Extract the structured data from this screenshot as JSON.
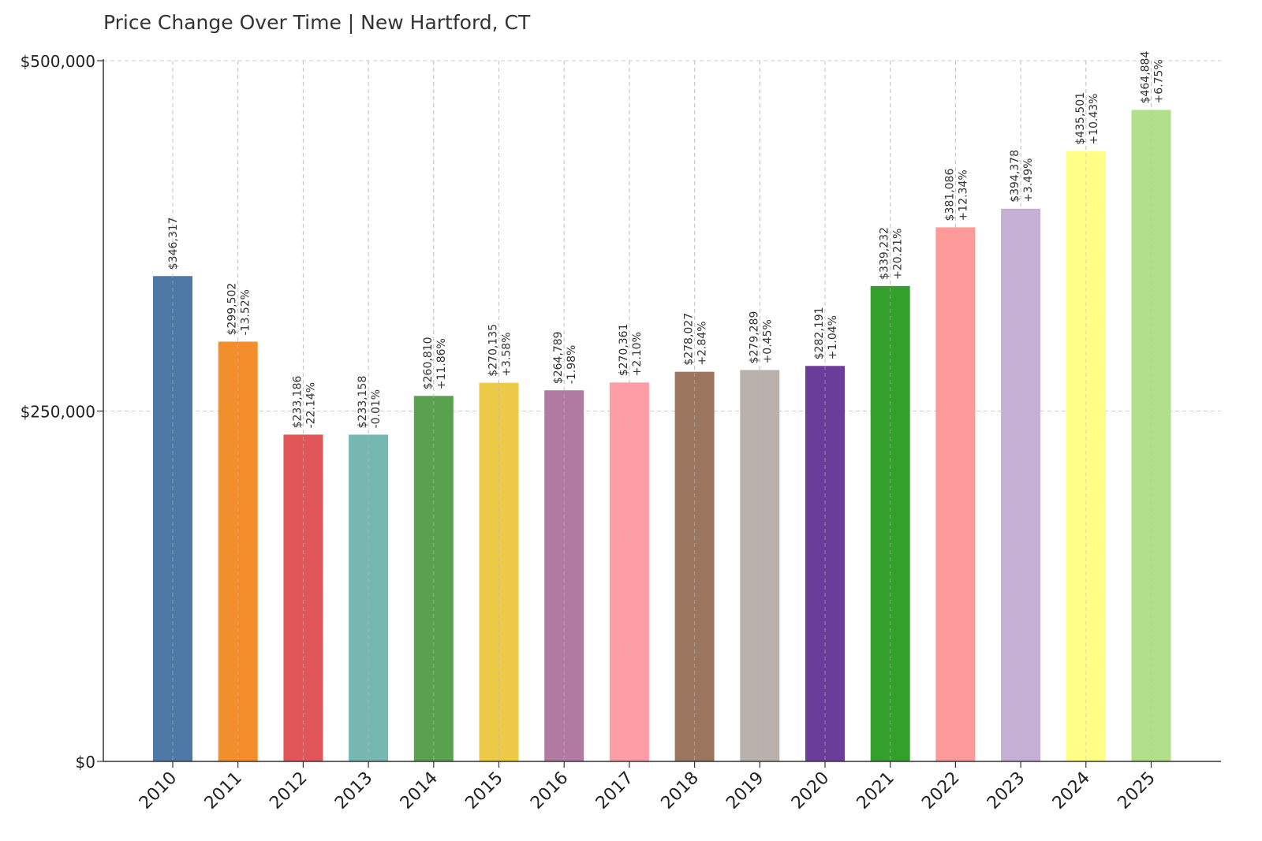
{
  "chart_data": {
    "type": "bar",
    "title": "Price Change Over Time | New Hartford, CT",
    "xlabel": "",
    "ylabel": "",
    "ylim": [
      0,
      500000
    ],
    "yticks": [
      {
        "value": 0,
        "label": "$0"
      },
      {
        "value": 250000,
        "label": "$250,000"
      },
      {
        "value": 500000,
        "label": "$500,000"
      }
    ],
    "grid": true,
    "legend": "none",
    "categories": [
      "2010",
      "2011",
      "2012",
      "2013",
      "2014",
      "2015",
      "2016",
      "2017",
      "2018",
      "2019",
      "2020",
      "2021",
      "2022",
      "2023",
      "2024",
      "2025"
    ],
    "values": [
      346317,
      299502,
      233186,
      233158,
      260810,
      270135,
      264789,
      270361,
      278027,
      279289,
      282191,
      339232,
      381086,
      394378,
      435501,
      464884
    ],
    "value_labels": [
      "$346,317",
      "$299,502",
      "$233,186",
      "$233,158",
      "$260,810",
      "$270,135",
      "$264,789",
      "$270,361",
      "$278,027",
      "$279,289",
      "$282,191",
      "$339,232",
      "$381,086",
      "$394,378",
      "$435,501",
      "$464,884"
    ],
    "change_labels": [
      "",
      "-13.52%",
      "-22.14%",
      "-0.01%",
      "+11.86%",
      "+3.58%",
      "-1.98%",
      "+2.10%",
      "+2.84%",
      "+0.45%",
      "+1.04%",
      "+20.21%",
      "+12.34%",
      "+3.49%",
      "+10.43%",
      "+6.75%"
    ],
    "colors": [
      "#4e79a7",
      "#f28e2b",
      "#e15759",
      "#76b7b2",
      "#59a14f",
      "#edc948",
      "#b07aa1",
      "#ff9da7",
      "#9c755f",
      "#bab0ac",
      "#6a3d9a",
      "#33a02c",
      "#fb9a99",
      "#c5b0d5",
      "#ffff88",
      "#b2df8a"
    ]
  }
}
